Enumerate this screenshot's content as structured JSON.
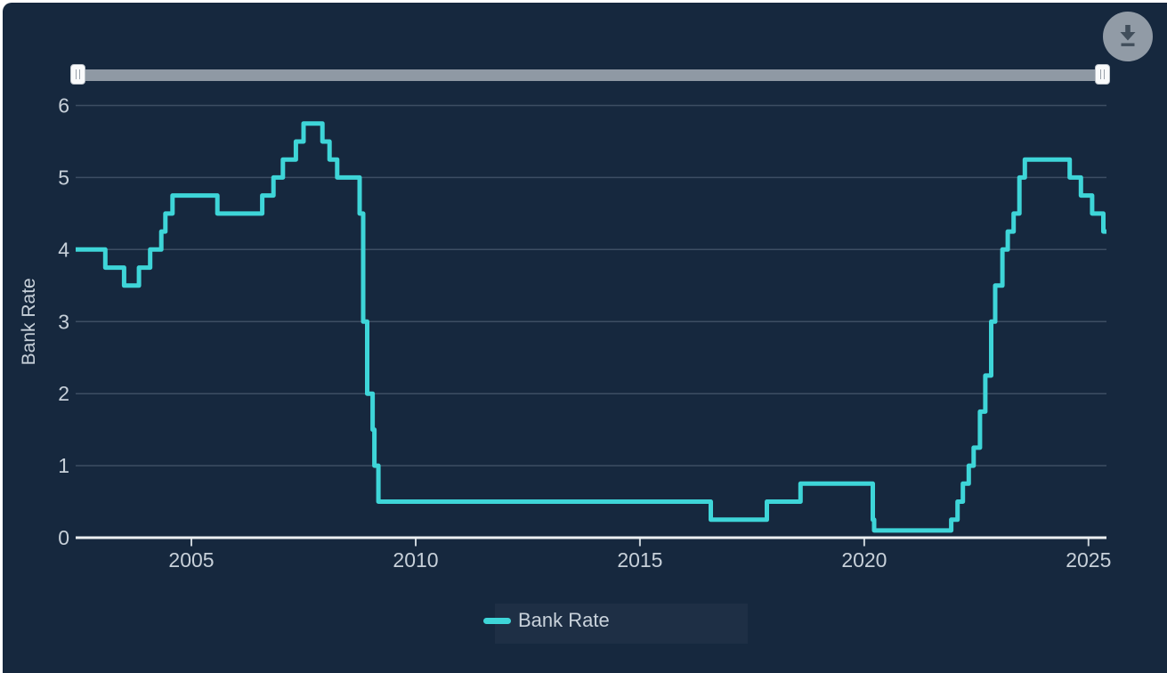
{
  "colors": {
    "panel_bg": "#16283e",
    "line": "#3ed5d8",
    "gridline": "#3d4e63",
    "axis_line": "#eceff1",
    "tick_mark": "#c9d1d8",
    "tick_label": "#c7d0d9",
    "slider_track": "#8f99a4",
    "slider_handle": "#f9fafb",
    "download_button_bg": "#919ba6",
    "download_icon": "#414e5b"
  },
  "toolbar": {
    "download_icon": "download-icon"
  },
  "range_slider": {
    "left_handle": "min",
    "right_handle": "max"
  },
  "legend": {
    "label": "Bank Rate"
  },
  "chart_data": {
    "type": "line",
    "step": "after",
    "title": "",
    "xlabel": "",
    "ylabel": "Bank Rate",
    "xlim": [
      2002.42,
      2025.4
    ],
    "ylim": [
      0,
      6
    ],
    "xticks": [
      2005,
      2010,
      2015,
      2020,
      2025
    ],
    "yticks": [
      0,
      1,
      2,
      3,
      4,
      5,
      6
    ],
    "grid": "horizontal",
    "legend_position": "bottom",
    "series": [
      {
        "name": "Bank Rate",
        "color": "#3ed5d8",
        "points": [
          [
            2002.42,
            4.0
          ],
          [
            2003.08,
            3.75
          ],
          [
            2003.5,
            3.5
          ],
          [
            2003.83,
            3.75
          ],
          [
            2004.08,
            4.0
          ],
          [
            2004.33,
            4.25
          ],
          [
            2004.42,
            4.5
          ],
          [
            2004.58,
            4.75
          ],
          [
            2005.58,
            4.5
          ],
          [
            2006.58,
            4.75
          ],
          [
            2006.83,
            5.0
          ],
          [
            2007.04,
            5.25
          ],
          [
            2007.33,
            5.5
          ],
          [
            2007.5,
            5.75
          ],
          [
            2007.92,
            5.5
          ],
          [
            2008.08,
            5.25
          ],
          [
            2008.25,
            5.0
          ],
          [
            2008.75,
            4.5
          ],
          [
            2008.83,
            3.0
          ],
          [
            2008.92,
            2.0
          ],
          [
            2009.04,
            1.5
          ],
          [
            2009.08,
            1.0
          ],
          [
            2009.17,
            0.5
          ],
          [
            2016.58,
            0.25
          ],
          [
            2017.83,
            0.5
          ],
          [
            2018.58,
            0.75
          ],
          [
            2020.19,
            0.25
          ],
          [
            2020.22,
            0.1
          ],
          [
            2021.94,
            0.25
          ],
          [
            2022.08,
            0.5
          ],
          [
            2022.2,
            0.75
          ],
          [
            2022.33,
            1.0
          ],
          [
            2022.44,
            1.25
          ],
          [
            2022.58,
            1.75
          ],
          [
            2022.7,
            2.25
          ],
          [
            2022.83,
            3.0
          ],
          [
            2022.92,
            3.5
          ],
          [
            2023.08,
            4.0
          ],
          [
            2023.2,
            4.25
          ],
          [
            2023.33,
            4.5
          ],
          [
            2023.46,
            5.0
          ],
          [
            2023.58,
            5.25
          ],
          [
            2024.58,
            5.0
          ],
          [
            2024.83,
            4.75
          ],
          [
            2025.08,
            4.5
          ],
          [
            2025.33,
            4.25
          ]
        ]
      }
    ]
  }
}
